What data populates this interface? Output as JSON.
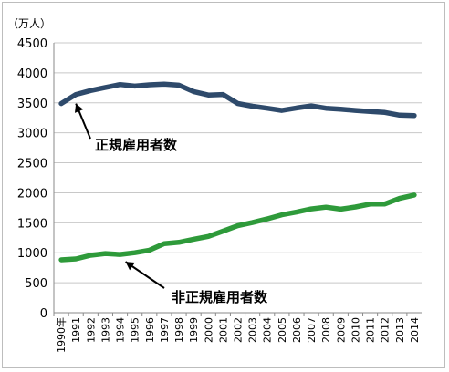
{
  "chart_data": {
    "type": "line",
    "unit_label": "（万人）",
    "x": [
      "1990年",
      "1991",
      "1992",
      "1993",
      "1994",
      "1995",
      "1996",
      "1997",
      "1998",
      "1999",
      "2000",
      "2001",
      "2002",
      "2003",
      "2004",
      "2005",
      "2006",
      "2007",
      "2008",
      "2009",
      "2010",
      "2011",
      "2012",
      "2013",
      "2014"
    ],
    "ylim": [
      0,
      4500
    ],
    "yticks": [
      "0",
      "500",
      "1000",
      "1500",
      "2000",
      "2500",
      "3000",
      "3500",
      "4000",
      "4500"
    ],
    "grid": true,
    "series": [
      {
        "name": "正規雇用者数",
        "color": "#2e4a6b",
        "values": [
          3488,
          3639,
          3705,
          3756,
          3805,
          3779,
          3800,
          3812,
          3794,
          3688,
          3630,
          3640,
          3489,
          3444,
          3410,
          3374,
          3415,
          3449,
          3410,
          3395,
          3374,
          3355,
          3340,
          3294,
          3288
        ]
      },
      {
        "name": "非正規雇用者数",
        "color": "#2e9a3a",
        "values": [
          881,
          897,
          958,
          986,
          971,
          1001,
          1043,
          1152,
          1173,
          1225,
          1273,
          1360,
          1451,
          1504,
          1564,
          1633,
          1678,
          1732,
          1760,
          1727,
          1763,
          1812,
          1813,
          1906,
          1962
        ]
      }
    ],
    "annotations": [
      {
        "text": "正規雇用者数",
        "series": 0
      },
      {
        "text": "非正規雇用者数",
        "series": 1
      }
    ]
  }
}
